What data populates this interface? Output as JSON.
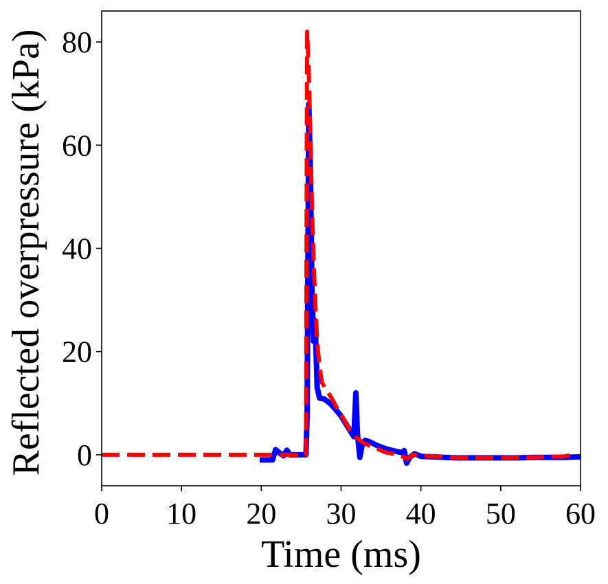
{
  "chart_data": {
    "type": "line",
    "xlabel": "Time (ms)",
    "ylabel": "Reflected overpressure (kPa)",
    "xlim": [
      0,
      60
    ],
    "ylim": [
      -6,
      86
    ],
    "xticks": [
      0,
      10,
      20,
      30,
      40,
      50,
      60
    ],
    "yticks": [
      0,
      20,
      40,
      60,
      80
    ],
    "grid": false,
    "legend": "none",
    "series": [
      {
        "color": "#0000ff",
        "style": "solid",
        "points": [
          [
            19.8,
            -1.0
          ],
          [
            21.4,
            -1.0
          ],
          [
            21.8,
            1.0
          ],
          [
            22.4,
            0.2
          ],
          [
            22.8,
            -0.2
          ],
          [
            23.2,
            0.9
          ],
          [
            23.6,
            0.0
          ],
          [
            25.6,
            0.0
          ],
          [
            25.75,
            8.0
          ],
          [
            25.85,
            40.0
          ],
          [
            25.95,
            68.0
          ],
          [
            26.15,
            55.0
          ],
          [
            26.35,
            32.0
          ],
          [
            26.55,
            22.0
          ],
          [
            26.75,
            26.0
          ],
          [
            27.0,
            13.0
          ],
          [
            27.3,
            11.0
          ],
          [
            27.9,
            10.8
          ],
          [
            28.6,
            10.0
          ],
          [
            29.2,
            9.0
          ],
          [
            30.0,
            7.5
          ],
          [
            30.8,
            5.5
          ],
          [
            31.6,
            3.5
          ],
          [
            31.85,
            12.0
          ],
          [
            32.05,
            4.0
          ],
          [
            32.35,
            -0.5
          ],
          [
            32.65,
            2.0
          ],
          [
            33.0,
            2.8
          ],
          [
            33.6,
            2.5
          ],
          [
            34.5,
            1.8
          ],
          [
            35.5,
            1.2
          ],
          [
            36.5,
            0.8
          ],
          [
            37.6,
            0.4
          ],
          [
            37.9,
            0.8
          ],
          [
            38.2,
            -1.6
          ],
          [
            38.6,
            -0.5
          ],
          [
            39.2,
            0.2
          ],
          [
            40.0,
            -0.3
          ],
          [
            41.5,
            -0.4
          ],
          [
            43.0,
            -0.5
          ],
          [
            44.5,
            -0.6
          ],
          [
            46.0,
            -0.6
          ],
          [
            48.0,
            -0.6
          ],
          [
            50.0,
            -0.6
          ],
          [
            52.0,
            -0.6
          ],
          [
            54.0,
            -0.5
          ],
          [
            56.0,
            -0.5
          ],
          [
            58.0,
            -0.5
          ],
          [
            60.0,
            -0.4
          ]
        ]
      },
      {
        "color": "#ff0000",
        "style": "dashed",
        "points": [
          [
            0.0,
            0.0
          ],
          [
            25.6,
            0.0
          ],
          [
            25.7,
            60.0
          ],
          [
            25.75,
            82.0
          ],
          [
            25.95,
            74.0
          ],
          [
            26.15,
            62.0
          ],
          [
            26.35,
            48.0
          ],
          [
            26.55,
            38.0
          ],
          [
            26.75,
            30.0
          ],
          [
            27.0,
            22.0
          ],
          [
            27.3,
            17.0
          ],
          [
            27.6,
            14.0
          ],
          [
            28.2,
            12.5
          ],
          [
            28.8,
            11.0
          ],
          [
            29.5,
            9.0
          ],
          [
            30.3,
            7.0
          ],
          [
            31.0,
            5.0
          ],
          [
            31.8,
            3.5
          ],
          [
            32.6,
            2.5
          ],
          [
            33.5,
            1.8
          ],
          [
            34.5,
            1.2
          ],
          [
            35.5,
            0.5
          ],
          [
            36.5,
            0.2
          ],
          [
            37.5,
            -0.2
          ],
          [
            38.3,
            -0.8
          ],
          [
            39.0,
            0.0
          ],
          [
            40.0,
            -0.2
          ],
          [
            42.0,
            -0.3
          ],
          [
            44.0,
            -0.5
          ],
          [
            46.0,
            -0.6
          ],
          [
            48.0,
            -0.6
          ],
          [
            50.0,
            -0.6
          ],
          [
            52.0,
            -0.5
          ],
          [
            54.0,
            -0.5
          ],
          [
            56.0,
            -0.4
          ],
          [
            58.0,
            -0.3
          ],
          [
            59.0,
            0.0
          ]
        ]
      }
    ]
  }
}
